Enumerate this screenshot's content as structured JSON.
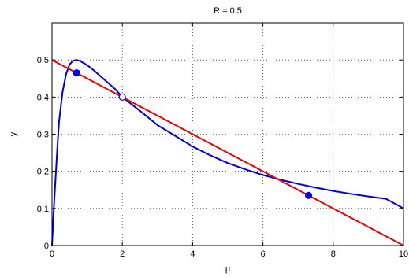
{
  "chart_data": {
    "type": "line",
    "title": "R = 0.5",
    "xlabel": "μ",
    "ylabel": "y",
    "xlim": [
      0,
      10
    ],
    "ylim": [
      0,
      0.6
    ],
    "xticks": [
      0,
      2,
      4,
      6,
      8,
      10
    ],
    "yticks": [
      0,
      0.1,
      0.2,
      0.3,
      0.4,
      0.5
    ],
    "xtick_labels": [
      "0",
      "2",
      "4",
      "6",
      "8",
      "10"
    ],
    "ytick_labels": [
      "0",
      "0.1",
      "0.2",
      "0.3",
      "0.4",
      "0.5"
    ],
    "grid": true,
    "series": [
      {
        "color": "#0000dd",
        "x": [
          0,
          0.05,
          0.1,
          0.15,
          0.2,
          0.3,
          0.4,
          0.5,
          0.6,
          0.7,
          0.8,
          0.9,
          1.0,
          1.1,
          1.2,
          1.4,
          1.6,
          1.8,
          2.0,
          2.3,
          2.6,
          3.0,
          3.5,
          4.0,
          4.5,
          5.0,
          5.5,
          6.0,
          6.5,
          7.0,
          7.5,
          8.0,
          8.5,
          9.0,
          9.5,
          10.0
        ],
        "y": [
          0,
          0.0952,
          0.1818,
          0.2609,
          0.3333,
          0.4138,
          0.4615,
          0.4878,
          0.4983,
          0.5,
          0.4969,
          0.4917,
          0.4857,
          0.4787,
          0.4711,
          0.4545,
          0.4375,
          0.421,
          0.4,
          0.3778,
          0.3556,
          0.3243,
          0.2957,
          0.2667,
          0.2432,
          0.2222,
          0.2052,
          0.19,
          0.1773,
          0.166,
          0.156,
          0.1471,
          0.1393,
          0.1323,
          0.126,
          0.1
        ]
      },
      {
        "color": "#ee0000",
        "x": [
          0,
          10
        ],
        "y": [
          0.5,
          0
        ]
      }
    ],
    "markers": [
      {
        "x": 0.7,
        "y": 0.465,
        "filled": true,
        "color": "#0000ee"
      },
      {
        "x": 2.0,
        "y": 0.4,
        "filled": false,
        "color": "#0000ee"
      },
      {
        "x": 7.3,
        "y": 0.135,
        "filled": true,
        "color": "#0000ee"
      }
    ]
  }
}
